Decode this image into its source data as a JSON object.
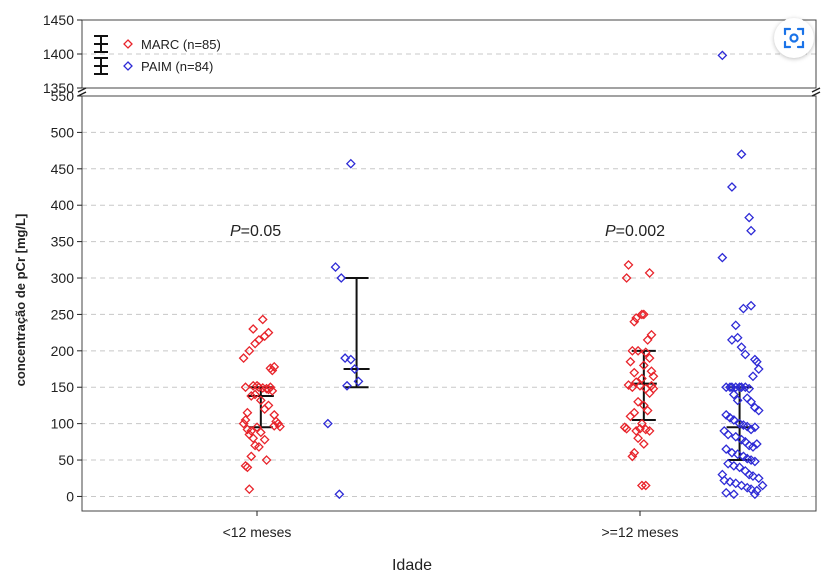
{
  "chart_data": {
    "type": "scatter",
    "title": "",
    "xlabel": "Idade",
    "ylabel": "concentração de pCr [mg/L]",
    "categories": [
      "<12 meses",
      ">=12 meses"
    ],
    "y_ticks_lower": [
      0,
      50,
      100,
      150,
      200,
      250,
      300,
      350,
      400,
      450,
      500,
      550
    ],
    "y_ticks_upper": [
      1350,
      1400,
      1450
    ],
    "ylim_lower": [
      -20,
      550
    ],
    "ylim_upper": [
      1350,
      1450
    ],
    "axis_break": true,
    "grid": true,
    "legend_position": "top-left",
    "annotations": [
      {
        "category": "<12 meses",
        "italic": "P",
        "text": "=0.05"
      },
      {
        "category": ">=12 meses",
        "italic": "P",
        "text": "=0.002"
      }
    ],
    "series": [
      {
        "name": "MARC (n=85)",
        "color": "#e8242b",
        "marker": "diamond",
        "groups": [
          {
            "category": "<12 meses",
            "summary": {
              "median": 138,
              "q1": 95,
              "q3": 150
            },
            "points": [
              [
                -0.07,
                190
              ],
              [
                -0.04,
                200
              ],
              [
                -0.02,
                230
              ],
              [
                0.03,
                243
              ],
              [
                0.01,
                215
              ],
              [
                -0.01,
                210
              ],
              [
                0.06,
                225
              ],
              [
                0.04,
                220
              ],
              [
                0.09,
                178
              ],
              [
                0.07,
                176
              ],
              [
                0.08,
                173
              ],
              [
                -0.06,
                150
              ],
              [
                -0.02,
                152
              ],
              [
                0.0,
                152
              ],
              [
                0.01,
                150
              ],
              [
                0.03,
                149
              ],
              [
                0.05,
                148
              ],
              [
                0.06,
                147
              ],
              [
                0.07,
                150
              ],
              [
                0.08,
                145
              ],
              [
                -0.03,
                138
              ],
              [
                -0.01,
                140
              ],
              [
                0.02,
                132
              ],
              [
                0.04,
                120
              ],
              [
                0.06,
                125
              ],
              [
                0.09,
                112
              ],
              [
                -0.05,
                115
              ],
              [
                -0.06,
                105
              ],
              [
                0.1,
                103
              ],
              [
                0.11,
                100
              ],
              [
                0.09,
                97
              ],
              [
                0.12,
                96
              ],
              [
                -0.07,
                100
              ],
              [
                -0.05,
                92
              ],
              [
                -0.03,
                90
              ],
              [
                -0.04,
                85
              ],
              [
                -0.02,
                80
              ],
              [
                0.0,
                95
              ],
              [
                0.02,
                88
              ],
              [
                0.04,
                78
              ],
              [
                -0.01,
                70
              ],
              [
                0.01,
                68
              ],
              [
                -0.03,
                55
              ],
              [
                0.05,
                50
              ],
              [
                -0.06,
                42
              ],
              [
                -0.05,
                40
              ],
              [
                -0.04,
                10
              ]
            ]
          },
          {
            "category": ">=12 meses",
            "summary": {
              "median": 155,
              "q1": 105,
              "q3": 200
            },
            "points": [
              [
                -0.06,
                318
              ],
              [
                -0.07,
                300
              ],
              [
                0.05,
                307
              ],
              [
                0.01,
                250
              ],
              [
                0.02,
                250
              ],
              [
                -0.03,
                240
              ],
              [
                -0.02,
                245
              ],
              [
                0.06,
                222
              ],
              [
                0.04,
                215
              ],
              [
                -0.04,
                200
              ],
              [
                -0.01,
                200
              ],
              [
                0.03,
                198
              ],
              [
                0.05,
                190
              ],
              [
                -0.05,
                185
              ],
              [
                0.02,
                180
              ],
              [
                0.06,
                172
              ],
              [
                0.07,
                165
              ],
              [
                -0.03,
                170
              ],
              [
                0.01,
                162
              ],
              [
                -0.02,
                157
              ],
              [
                0.0,
                152
              ],
              [
                -0.06,
                153
              ],
              [
                -0.04,
                150
              ],
              [
                0.03,
                148
              ],
              [
                0.06,
                152
              ],
              [
                0.07,
                148
              ],
              [
                0.05,
                142
              ],
              [
                -0.01,
                130
              ],
              [
                0.02,
                125
              ],
              [
                0.04,
                118
              ],
              [
                -0.03,
                115
              ],
              [
                -0.05,
                110
              ],
              [
                0.01,
                100
              ],
              [
                -0.08,
                95
              ],
              [
                -0.07,
                93
              ],
              [
                0.0,
                93
              ],
              [
                0.03,
                92
              ],
              [
                -0.02,
                90
              ],
              [
                0.05,
                90
              ],
              [
                -0.01,
                80
              ],
              [
                0.02,
                72
              ],
              [
                -0.03,
                60
              ],
              [
                -0.04,
                55
              ],
              [
                0.01,
                15
              ],
              [
                0.03,
                15
              ]
            ]
          }
        ]
      },
      {
        "name": "PAIM (n=84)",
        "color": "#2e2bd6",
        "marker": "diamond",
        "groups": [
          {
            "category": "<12 meses",
            "summary": {
              "median": 175,
              "q1": 150,
              "q3": 300
            },
            "points": [
              [
                0.49,
                457
              ],
              [
                0.41,
                315
              ],
              [
                0.44,
                300
              ],
              [
                0.46,
                190
              ],
              [
                0.49,
                188
              ],
              [
                0.51,
                175
              ],
              [
                0.47,
                152
              ],
              [
                0.53,
                158
              ],
              [
                0.37,
                100
              ],
              [
                0.43,
                3
              ]
            ]
          },
          {
            "category": ">=12 meses",
            "summary": {
              "median": 95,
              "q1": 50,
              "q3": 150
            },
            "points": [
              [
                0.43,
                1398
              ],
              [
                0.53,
                470
              ],
              [
                0.48,
                425
              ],
              [
                0.57,
                383
              ],
              [
                0.58,
                365
              ],
              [
                0.43,
                328
              ],
              [
                0.58,
                262
              ],
              [
                0.54,
                258
              ],
              [
                0.5,
                235
              ],
              [
                0.51,
                218
              ],
              [
                0.48,
                215
              ],
              [
                0.53,
                205
              ],
              [
                0.55,
                195
              ],
              [
                0.6,
                188
              ],
              [
                0.61,
                185
              ],
              [
                0.62,
                175
              ],
              [
                0.59,
                165
              ],
              [
                0.45,
                150
              ],
              [
                0.47,
                150
              ],
              [
                0.48,
                150
              ],
              [
                0.5,
                150
              ],
              [
                0.52,
                150
              ],
              [
                0.53,
                150
              ],
              [
                0.55,
                150
              ],
              [
                0.57,
                148
              ],
              [
                0.49,
                140
              ],
              [
                0.51,
                132
              ],
              [
                0.56,
                135
              ],
              [
                0.58,
                130
              ],
              [
                0.6,
                122
              ],
              [
                0.62,
                118
              ],
              [
                0.45,
                112
              ],
              [
                0.47,
                108
              ],
              [
                0.49,
                105
              ],
              [
                0.52,
                100
              ],
              [
                0.54,
                98
              ],
              [
                0.56,
                96
              ],
              [
                0.58,
                92
              ],
              [
                0.6,
                95
              ],
              [
                0.44,
                90
              ],
              [
                0.46,
                85
              ],
              [
                0.5,
                82
              ],
              [
                0.53,
                78
              ],
              [
                0.55,
                75
              ],
              [
                0.57,
                70
              ],
              [
                0.59,
                68
              ],
              [
                0.61,
                72
              ],
              [
                0.45,
                65
              ],
              [
                0.48,
                60
              ],
              [
                0.51,
                58
              ],
              [
                0.54,
                55
              ],
              [
                0.56,
                52
              ],
              [
                0.58,
                50
              ],
              [
                0.6,
                48
              ],
              [
                0.46,
                45
              ],
              [
                0.49,
                42
              ],
              [
                0.52,
                40
              ],
              [
                0.55,
                35
              ],
              [
                0.57,
                30
              ],
              [
                0.59,
                28
              ],
              [
                0.62,
                25
              ],
              [
                0.44,
                22
              ],
              [
                0.47,
                20
              ],
              [
                0.5,
                18
              ],
              [
                0.53,
                15
              ],
              [
                0.56,
                12
              ],
              [
                0.58,
                10
              ],
              [
                0.61,
                8
              ],
              [
                0.45,
                5
              ],
              [
                0.49,
                3
              ],
              [
                0.6,
                3
              ],
              [
                0.43,
                30
              ],
              [
                0.64,
                15
              ]
            ]
          }
        ]
      }
    ]
  },
  "toolbar": {
    "scan_icon": "scan-icon"
  }
}
